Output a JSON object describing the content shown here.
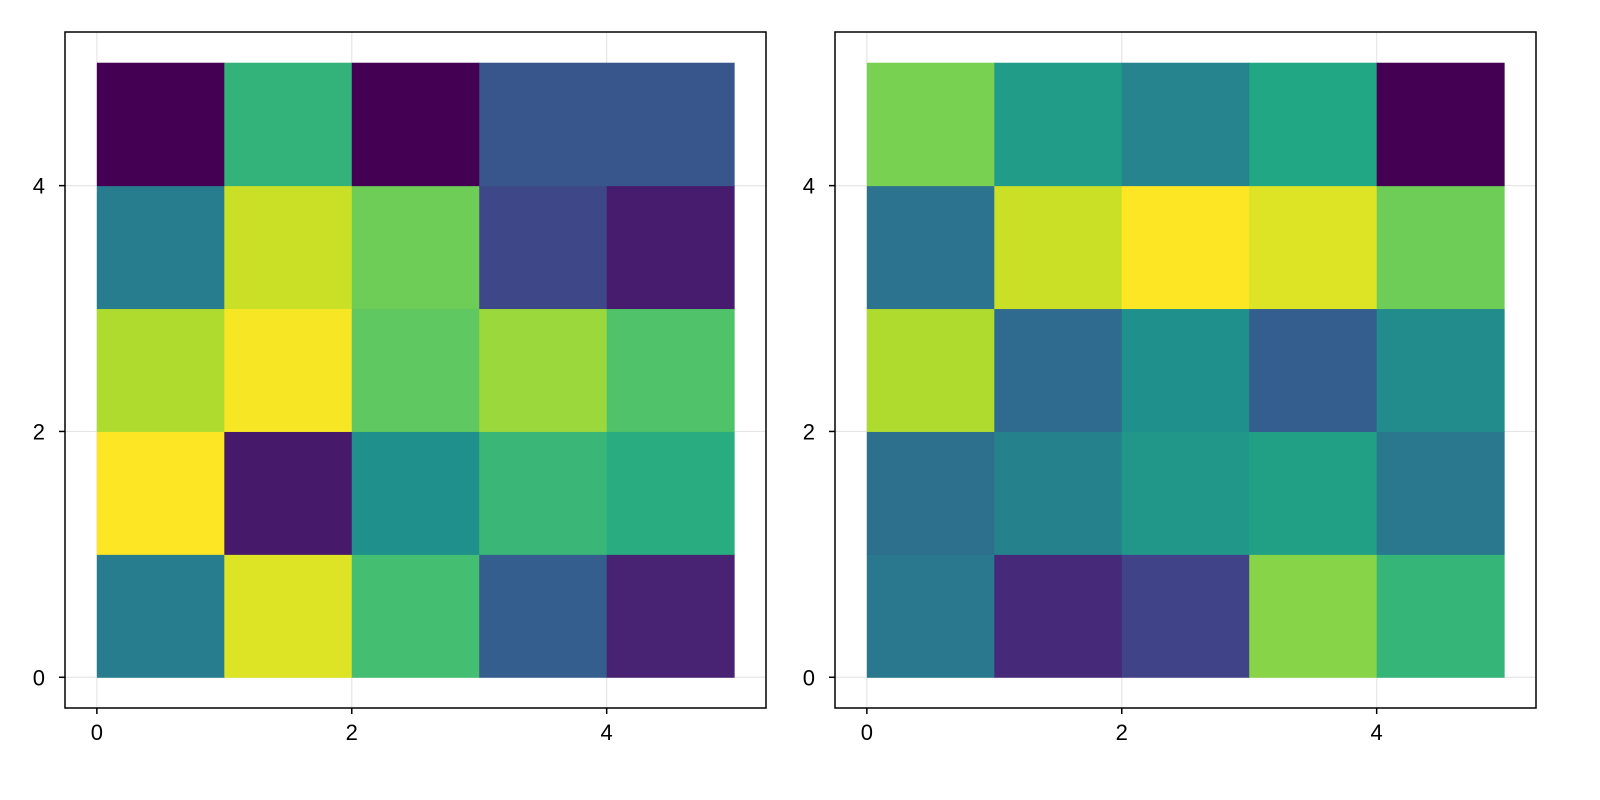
{
  "chart_data": [
    {
      "type": "heatmap",
      "x_edges": [
        0,
        1,
        2,
        3,
        4,
        5
      ],
      "y_edges": [
        0,
        1,
        2,
        3,
        4,
        5
      ],
      "xlim": [
        -0.25,
        5.25
      ],
      "ylim": [
        -0.25,
        5.25
      ],
      "x_ticks": [
        0,
        2,
        4
      ],
      "y_ticks": [
        0,
        2,
        4
      ],
      "x_tick_labels": [
        "0",
        "2",
        "4"
      ],
      "y_tick_labels": [
        "0",
        "2",
        "4"
      ],
      "grid": true,
      "colormap": "viridis",
      "title": "",
      "xlabel": "",
      "ylabel": "",
      "values": [
        [
          0.42,
          0.95,
          0.7,
          0.3,
          0.1
        ],
        [
          1.0,
          0.07,
          0.5,
          0.67,
          0.62
        ],
        [
          0.88,
          0.99,
          0.75,
          0.85,
          0.72
        ],
        [
          0.42,
          0.92,
          0.78,
          0.22,
          0.08
        ],
        [
          0.0,
          0.65,
          0.0,
          0.27,
          0.27
        ]
      ]
    },
    {
      "type": "heatmap",
      "x_edges": [
        0,
        1,
        2,
        3,
        4,
        5
      ],
      "y_edges": [
        0,
        1,
        2,
        3,
        4,
        5
      ],
      "xlim": [
        -0.25,
        5.25
      ],
      "ylim": [
        -0.25,
        5.25
      ],
      "x_ticks": [
        0,
        2,
        4
      ],
      "y_ticks": [
        0,
        2,
        4
      ],
      "x_tick_labels": [
        "0",
        "2",
        "4"
      ],
      "y_tick_labels": [
        "0",
        "2",
        "4"
      ],
      "grid": true,
      "colormap": "viridis",
      "title": "",
      "xlabel": "",
      "ylabel": "",
      "values": [
        [
          0.4,
          0.12,
          0.2,
          0.82,
          0.66
        ],
        [
          0.37,
          0.44,
          0.53,
          0.57,
          0.4
        ],
        [
          0.88,
          0.35,
          0.5,
          0.3,
          0.48
        ],
        [
          0.38,
          0.92,
          1.0,
          0.95,
          0.78
        ],
        [
          0.8,
          0.55,
          0.45,
          0.6,
          0.0
        ]
      ]
    }
  ]
}
